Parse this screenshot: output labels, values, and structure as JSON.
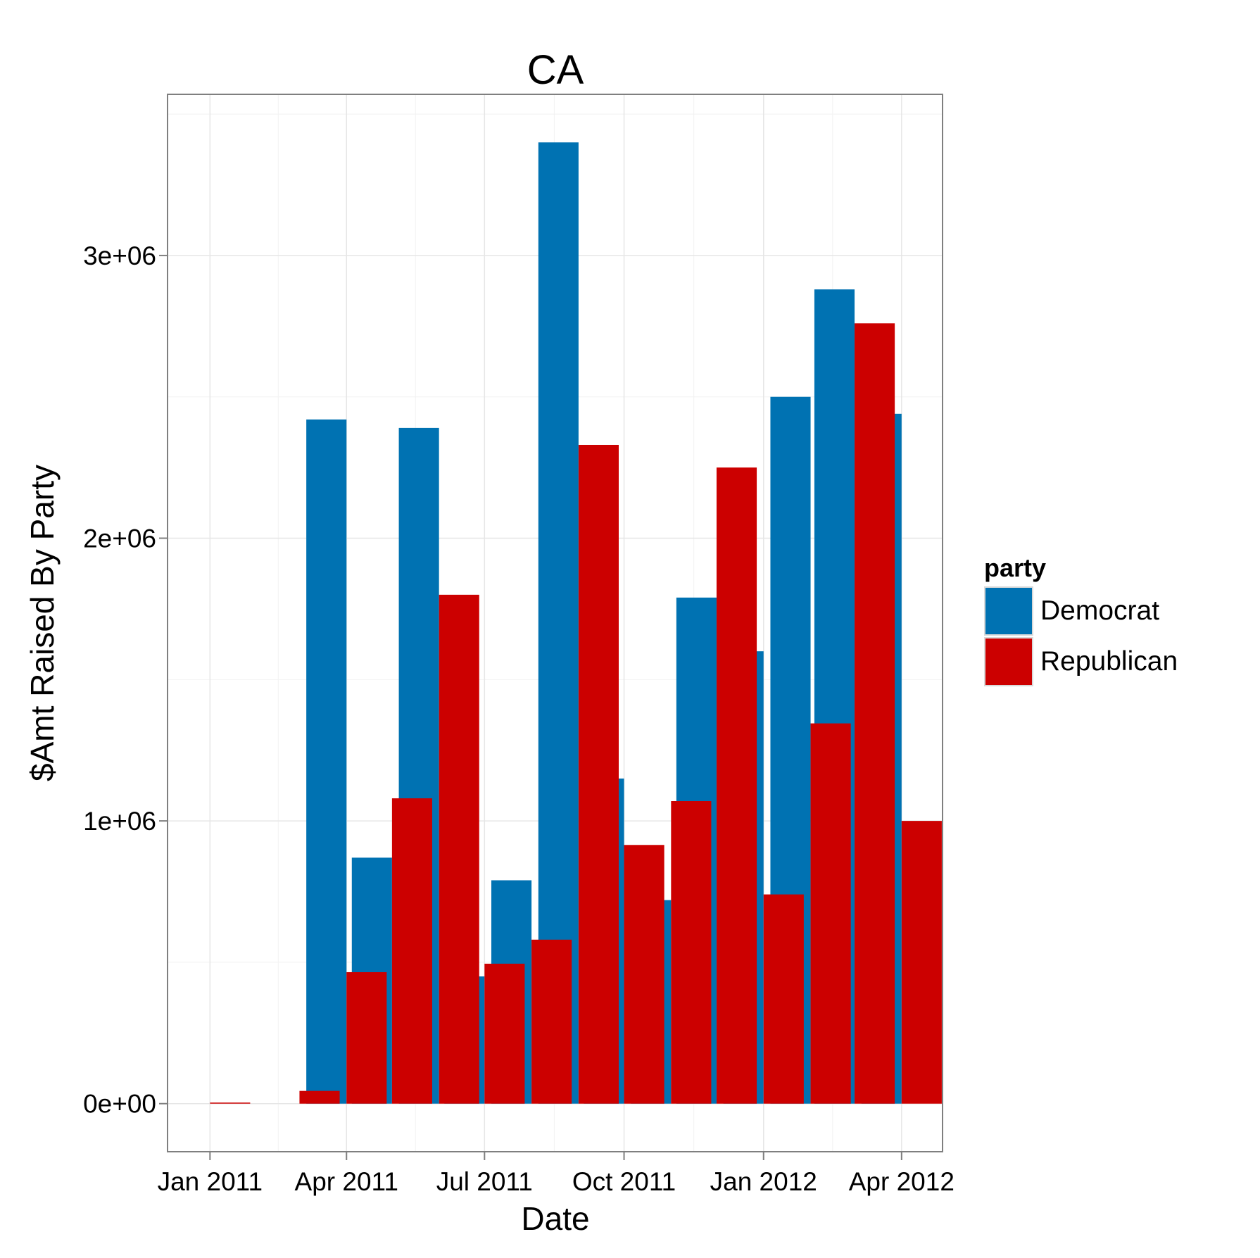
{
  "chart_data": {
    "type": "bar",
    "title": "CA",
    "xlabel": "Date",
    "ylabel": "$Amt Raised By Party",
    "x_tick_labels": [
      "Jan 2011",
      "Apr 2011",
      "Jul 2011",
      "Oct 2011",
      "Jan 2012",
      "Apr 2012"
    ],
    "x_tick_dates": [
      "2011-01-01",
      "2011-04-01",
      "2011-07-01",
      "2011-10-01",
      "2012-01-01",
      "2012-04-01"
    ],
    "y_tick_labels": [
      "0e+00",
      "1e+06",
      "2e+06",
      "3e+06"
    ],
    "y_tick_values": [
      0,
      1000000,
      2000000,
      3000000
    ],
    "ylim": [
      -170000,
      3570000
    ],
    "xlim": [
      "2010-12-04",
      "2012-04-28"
    ],
    "grid": true,
    "legend_position": "right",
    "legend_title": "party",
    "x": [
      "2011-01-01",
      "2011-02-01",
      "2011-03-01",
      "2011-04-01",
      "2011-05-01",
      "2011-06-01",
      "2011-07-01",
      "2011-08-01",
      "2011-09-01",
      "2011-10-01",
      "2011-11-01",
      "2011-12-01",
      "2012-01-01",
      "2012-02-01",
      "2012-03-01",
      "2012-04-01"
    ],
    "series": [
      {
        "name": "Democrat",
        "color": "#0072b2",
        "values": [
          0,
          0,
          0,
          2420000,
          870000,
          2390000,
          450000,
          790000,
          3400000,
          1150000,
          720000,
          1790000,
          1600000,
          2500000,
          2880000,
          2440000
        ]
      },
      {
        "name": "Republican",
        "color": "#cc0000",
        "values": [
          3000,
          0,
          45000,
          465000,
          1080000,
          1800000,
          495000,
          580000,
          2330000,
          915000,
          1070000,
          2250000,
          740000,
          1345000,
          2760000,
          1000000
        ]
      }
    ]
  }
}
